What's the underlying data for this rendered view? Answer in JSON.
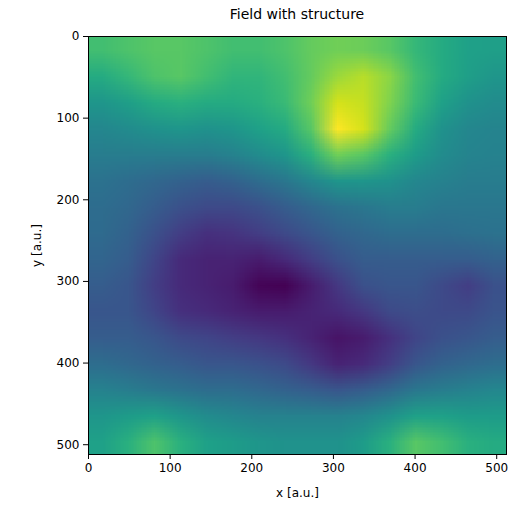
{
  "chart_data": {
    "type": "heatmap",
    "title": "Field with structure",
    "xlabel": "x [a.u.]",
    "ylabel": "y [a.u.]",
    "xlim": [
      0,
      512
    ],
    "ylim": [
      512,
      0
    ],
    "xticks": [
      0,
      100,
      200,
      300,
      400,
      500
    ],
    "yticks": [
      0,
      100,
      200,
      300,
      400,
      500
    ],
    "color": "viridis",
    "cells": [
      [
        0.68,
        0.7,
        0.72,
        0.72,
        0.7,
        0.68,
        0.68,
        0.7,
        0.74,
        0.76,
        0.75,
        0.72,
        0.65,
        0.6,
        0.56,
        0.55
      ],
      [
        0.6,
        0.65,
        0.7,
        0.72,
        0.68,
        0.64,
        0.64,
        0.68,
        0.74,
        0.82,
        0.86,
        0.8,
        0.68,
        0.6,
        0.55,
        0.52
      ],
      [
        0.52,
        0.55,
        0.6,
        0.62,
        0.6,
        0.6,
        0.62,
        0.66,
        0.76,
        0.9,
        0.88,
        0.78,
        0.66,
        0.56,
        0.5,
        0.48
      ],
      [
        0.46,
        0.48,
        0.5,
        0.52,
        0.5,
        0.52,
        0.56,
        0.6,
        0.72,
        0.96,
        0.9,
        0.74,
        0.6,
        0.5,
        0.46,
        0.45
      ],
      [
        0.42,
        0.42,
        0.42,
        0.42,
        0.42,
        0.44,
        0.48,
        0.52,
        0.62,
        0.76,
        0.72,
        0.62,
        0.54,
        0.48,
        0.45,
        0.44
      ],
      [
        0.38,
        0.36,
        0.34,
        0.32,
        0.3,
        0.32,
        0.36,
        0.4,
        0.46,
        0.52,
        0.52,
        0.5,
        0.46,
        0.44,
        0.42,
        0.42
      ],
      [
        0.36,
        0.34,
        0.3,
        0.26,
        0.24,
        0.24,
        0.26,
        0.3,
        0.34,
        0.38,
        0.4,
        0.42,
        0.42,
        0.4,
        0.4,
        0.4
      ],
      [
        0.35,
        0.32,
        0.26,
        0.2,
        0.16,
        0.17,
        0.2,
        0.24,
        0.28,
        0.32,
        0.34,
        0.36,
        0.36,
        0.36,
        0.37,
        0.38
      ],
      [
        0.33,
        0.3,
        0.22,
        0.14,
        0.12,
        0.12,
        0.1,
        0.14,
        0.2,
        0.26,
        0.3,
        0.3,
        0.3,
        0.3,
        0.3,
        0.32
      ],
      [
        0.3,
        0.28,
        0.2,
        0.14,
        0.12,
        0.1,
        0.04,
        0.03,
        0.1,
        0.18,
        0.26,
        0.28,
        0.28,
        0.24,
        0.2,
        0.26
      ],
      [
        0.28,
        0.28,
        0.22,
        0.16,
        0.14,
        0.12,
        0.1,
        0.1,
        0.12,
        0.14,
        0.18,
        0.24,
        0.25,
        0.24,
        0.24,
        0.27
      ],
      [
        0.3,
        0.3,
        0.28,
        0.24,
        0.22,
        0.2,
        0.18,
        0.16,
        0.12,
        0.08,
        0.1,
        0.16,
        0.22,
        0.26,
        0.28,
        0.3
      ],
      [
        0.36,
        0.34,
        0.32,
        0.3,
        0.28,
        0.28,
        0.26,
        0.24,
        0.18,
        0.12,
        0.14,
        0.2,
        0.28,
        0.32,
        0.34,
        0.36
      ],
      [
        0.44,
        0.42,
        0.4,
        0.38,
        0.36,
        0.36,
        0.34,
        0.32,
        0.3,
        0.28,
        0.3,
        0.34,
        0.4,
        0.42,
        0.44,
        0.46
      ],
      [
        0.52,
        0.54,
        0.56,
        0.52,
        0.48,
        0.46,
        0.44,
        0.44,
        0.44,
        0.44,
        0.46,
        0.5,
        0.56,
        0.56,
        0.54,
        0.54
      ],
      [
        0.56,
        0.62,
        0.7,
        0.62,
        0.56,
        0.54,
        0.52,
        0.5,
        0.5,
        0.5,
        0.54,
        0.62,
        0.72,
        0.68,
        0.62,
        0.6
      ]
    ]
  }
}
